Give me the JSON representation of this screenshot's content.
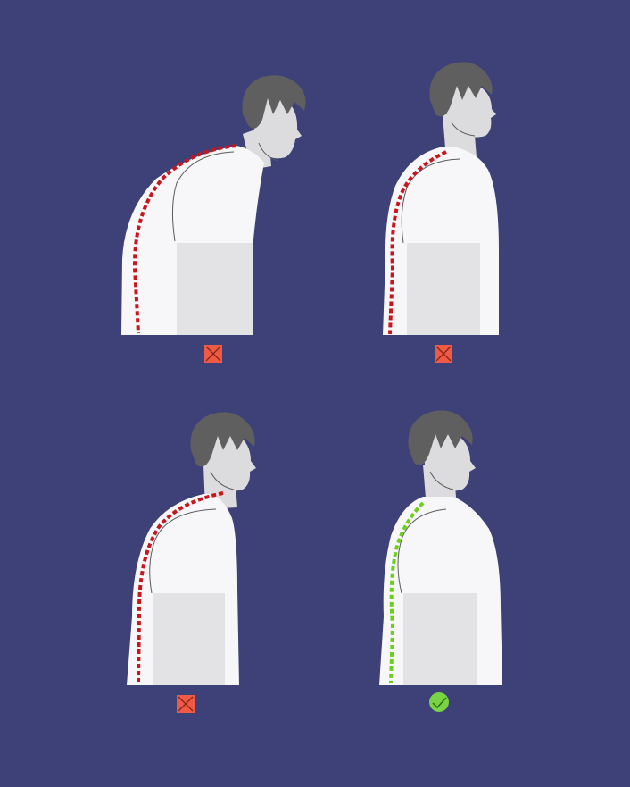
{
  "background_color": "#3d4178",
  "colors": {
    "hair": "#5f5f5f",
    "skin": "#dcdcde",
    "shirt": "#f7f7f9",
    "shirt_shadow": "#e3e3e5",
    "curve_bad": "#c8161f",
    "curve_good": "#6ccf1c",
    "mark_bad": "#ef5a45",
    "mark_good": "#78d445"
  },
  "figures": [
    {
      "name": "severe-slouch",
      "posture": "bad",
      "marker_icon": "x-mark-icon"
    },
    {
      "name": "upper-back-rounding",
      "posture": "bad",
      "marker_icon": "x-mark-icon"
    },
    {
      "name": "forward-head",
      "posture": "bad",
      "marker_icon": "x-mark-icon"
    },
    {
      "name": "correct-posture",
      "posture": "good",
      "marker_icon": "check-mark-icon"
    }
  ]
}
